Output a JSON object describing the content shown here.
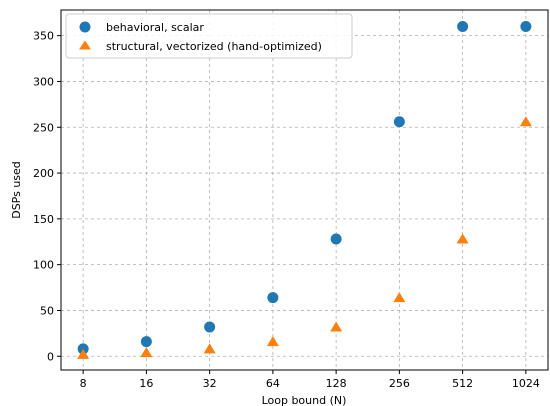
{
  "chart_data": {
    "type": "scatter",
    "xlabel": "Loop bound (N)",
    "ylabel": "DSPs used",
    "x_scale": "log2",
    "categories": [
      "8",
      "16",
      "32",
      "64",
      "128",
      "256",
      "512",
      "1024"
    ],
    "x": [
      8,
      16,
      32,
      64,
      128,
      256,
      512,
      1024
    ],
    "ylim": [
      -15,
      378
    ],
    "yticks": [
      0,
      50,
      100,
      150,
      200,
      250,
      300,
      350
    ],
    "grid": true,
    "legend_position": "top-left",
    "series": [
      {
        "name": "behavioral, scalar",
        "marker": "circle",
        "color": "#1f77b4",
        "values": [
          8,
          16,
          32,
          64,
          128,
          256,
          360,
          360
        ]
      },
      {
        "name": "structural, vectorized (hand-optimized)",
        "marker": "triangle",
        "color": "#ff7f0e",
        "values": [
          2,
          4,
          8,
          16,
          32,
          64,
          128,
          256
        ]
      }
    ]
  }
}
